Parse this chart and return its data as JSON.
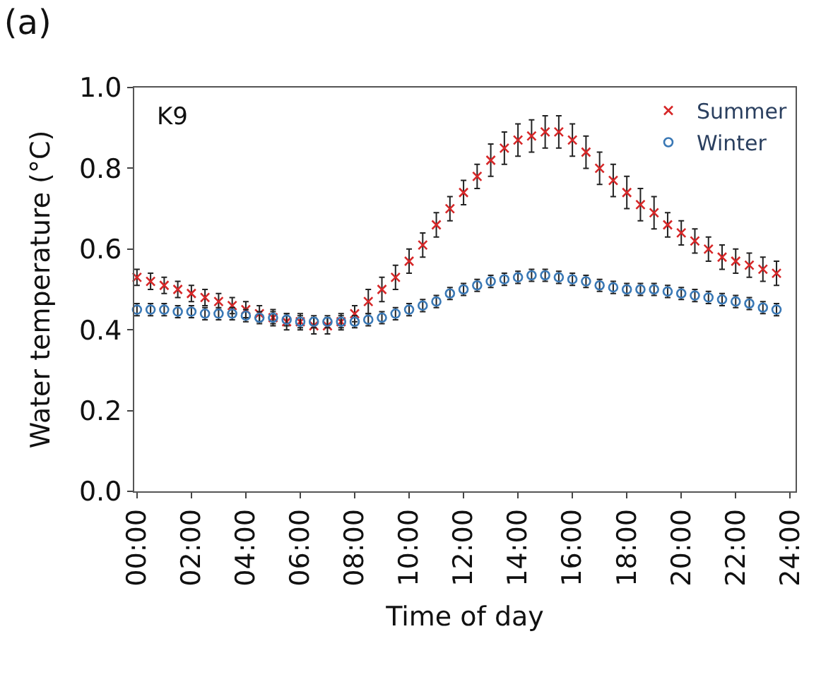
{
  "chart_data": {
    "type": "scatter",
    "title": "(a)",
    "xlabel": "Time of day",
    "ylabel": "Water temperature (°C)",
    "annotations": [
      "K9"
    ],
    "x": [
      0,
      0.5,
      1,
      1.5,
      2,
      2.5,
      3,
      3.5,
      4,
      4.5,
      5,
      5.5,
      6,
      6.5,
      7,
      7.5,
      8,
      8.5,
      9,
      9.5,
      10,
      10.5,
      11,
      11.5,
      12,
      12.5,
      13,
      13.5,
      14,
      14.5,
      15,
      15.5,
      16,
      16.5,
      17,
      17.5,
      18,
      18.5,
      19,
      19.5,
      20,
      20.5,
      21,
      21.5,
      22,
      22.5,
      23,
      23.5
    ],
    "series": [
      {
        "name": "Summer",
        "color": "#d62728",
        "marker": "cross",
        "values": [
          0.53,
          0.52,
          0.51,
          0.5,
          0.49,
          0.48,
          0.47,
          0.46,
          0.45,
          0.44,
          0.43,
          0.42,
          0.42,
          0.41,
          0.41,
          0.42,
          0.44,
          0.47,
          0.5,
          0.53,
          0.57,
          0.61,
          0.66,
          0.7,
          0.74,
          0.78,
          0.82,
          0.85,
          0.87,
          0.88,
          0.89,
          0.89,
          0.87,
          0.84,
          0.8,
          0.77,
          0.74,
          0.71,
          0.69,
          0.66,
          0.64,
          0.62,
          0.6,
          0.58,
          0.57,
          0.56,
          0.55,
          0.54
        ],
        "errors": [
          0.02,
          0.02,
          0.02,
          0.02,
          0.02,
          0.02,
          0.02,
          0.02,
          0.02,
          0.02,
          0.02,
          0.02,
          0.02,
          0.02,
          0.02,
          0.02,
          0.02,
          0.03,
          0.03,
          0.03,
          0.03,
          0.03,
          0.03,
          0.03,
          0.03,
          0.03,
          0.04,
          0.04,
          0.04,
          0.04,
          0.04,
          0.04,
          0.04,
          0.04,
          0.04,
          0.04,
          0.04,
          0.04,
          0.04,
          0.03,
          0.03,
          0.03,
          0.03,
          0.03,
          0.03,
          0.03,
          0.03,
          0.03
        ]
      },
      {
        "name": "Winter",
        "color": "#3a78b5",
        "marker": "circle",
        "values": [
          0.45,
          0.45,
          0.45,
          0.445,
          0.445,
          0.44,
          0.44,
          0.44,
          0.435,
          0.43,
          0.43,
          0.425,
          0.42,
          0.42,
          0.42,
          0.42,
          0.42,
          0.425,
          0.43,
          0.44,
          0.45,
          0.46,
          0.47,
          0.49,
          0.5,
          0.51,
          0.52,
          0.525,
          0.53,
          0.535,
          0.535,
          0.53,
          0.525,
          0.52,
          0.51,
          0.505,
          0.5,
          0.5,
          0.5,
          0.495,
          0.49,
          0.485,
          0.48,
          0.475,
          0.47,
          0.465,
          0.455,
          0.45
        ],
        "errors": [
          0.015,
          0.015,
          0.015,
          0.015,
          0.015,
          0.015,
          0.015,
          0.015,
          0.015,
          0.015,
          0.015,
          0.015,
          0.015,
          0.015,
          0.015,
          0.015,
          0.015,
          0.015,
          0.015,
          0.015,
          0.015,
          0.015,
          0.015,
          0.015,
          0.015,
          0.015,
          0.015,
          0.015,
          0.015,
          0.015,
          0.015,
          0.015,
          0.015,
          0.015,
          0.015,
          0.015,
          0.015,
          0.015,
          0.015,
          0.015,
          0.015,
          0.015,
          0.015,
          0.015,
          0.015,
          0.015,
          0.015,
          0.015
        ]
      }
    ],
    "xlim": [
      -0.1,
      24.2
    ],
    "xticks": [
      {
        "value": 0,
        "label": "00:00"
      },
      {
        "value": 2,
        "label": "02:00"
      },
      {
        "value": 4,
        "label": "04:00"
      },
      {
        "value": 6,
        "label": "06:00"
      },
      {
        "value": 8,
        "label": "08:00"
      },
      {
        "value": 10,
        "label": "10:00"
      },
      {
        "value": 12,
        "label": "12:00"
      },
      {
        "value": 14,
        "label": "14:00"
      },
      {
        "value": 16,
        "label": "16:00"
      },
      {
        "value": 18,
        "label": "18:00"
      },
      {
        "value": 20,
        "label": "20:00"
      },
      {
        "value": 22,
        "label": "22:00"
      },
      {
        "value": 24,
        "label": "24:00"
      }
    ],
    "ylim": [
      0,
      1.0
    ],
    "yticks": [
      {
        "value": 0,
        "label": "0.0"
      },
      {
        "value": 0.2,
        "label": "0.2"
      },
      {
        "value": 0.4,
        "label": "0.4"
      },
      {
        "value": 0.6,
        "label": "0.6"
      },
      {
        "value": 0.8,
        "label": "0.8"
      },
      {
        "value": 1.0,
        "label": "1.0"
      }
    ],
    "legend": "top right"
  }
}
